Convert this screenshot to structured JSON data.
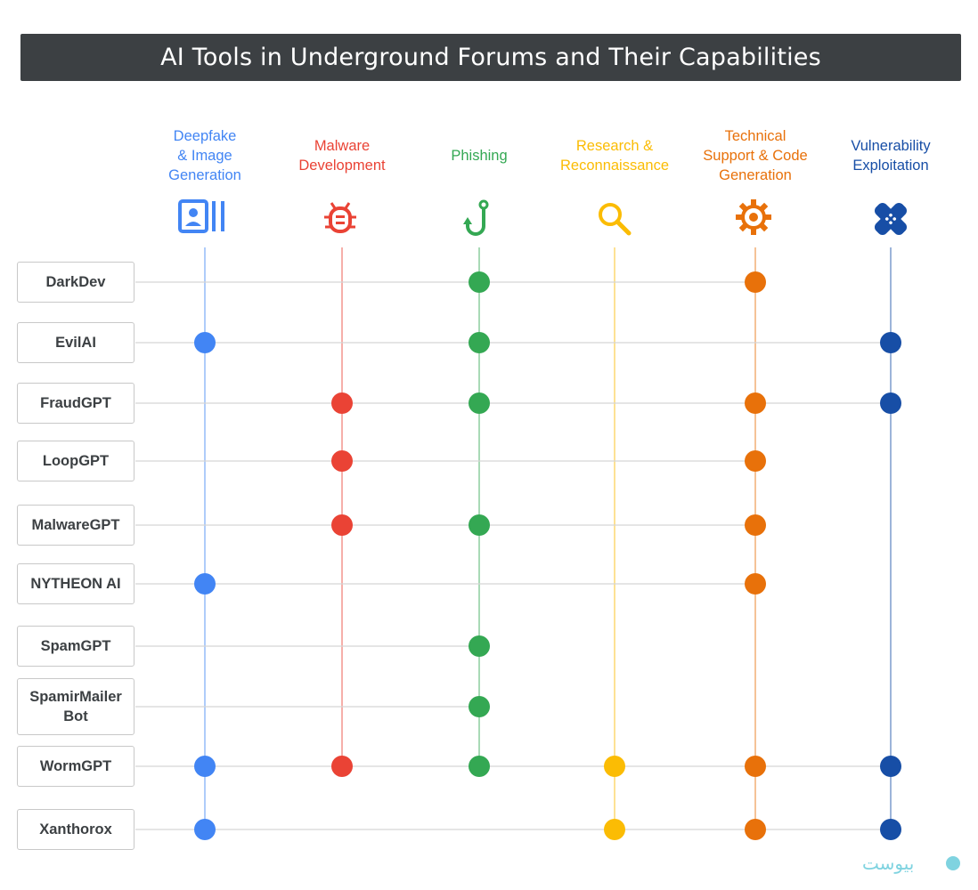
{
  "title": "AI Tools in Underground Forums and Their Capabilities",
  "categories": [
    {
      "label": "Deepfake\n& Image\nGeneration",
      "color": "#4285f4",
      "icon": "image-gallery-icon"
    },
    {
      "label": "Malware\nDevelopment",
      "color": "#ea4335",
      "icon": "bug-icon"
    },
    {
      "label": "Phishing",
      "color": "#34a853",
      "icon": "fishing-hook-icon"
    },
    {
      "label": "Research &\nReconnaissance",
      "color": "#fbbc04",
      "icon": "magnifier-icon"
    },
    {
      "label": "Technical\nSupport & Code\nGeneration",
      "color": "#e8710a",
      "icon": "gear-icon"
    },
    {
      "label": "Vulnerability\nExploitation",
      "color": "#174ea6",
      "icon": "bandage-icon"
    }
  ],
  "tools": [
    {
      "name": "DarkDev",
      "capabilities": [
        false,
        false,
        true,
        false,
        true,
        false
      ]
    },
    {
      "name": "EvilAI",
      "capabilities": [
        true,
        false,
        true,
        false,
        false,
        true
      ]
    },
    {
      "name": "FraudGPT",
      "capabilities": [
        false,
        true,
        true,
        false,
        true,
        true
      ]
    },
    {
      "name": "LoopGPT",
      "capabilities": [
        false,
        true,
        false,
        false,
        true,
        false
      ]
    },
    {
      "name": "MalwareGPT",
      "capabilities": [
        false,
        true,
        true,
        false,
        true,
        false
      ]
    },
    {
      "name": "NYTHEON AI",
      "capabilities": [
        true,
        false,
        false,
        false,
        true,
        false
      ]
    },
    {
      "name": "SpamGPT",
      "capabilities": [
        false,
        false,
        true,
        false,
        false,
        false
      ]
    },
    {
      "name": "SpamirMailer\nBot",
      "capabilities": [
        false,
        false,
        true,
        false,
        false,
        false
      ]
    },
    {
      "name": "WormGPT",
      "capabilities": [
        true,
        true,
        true,
        true,
        true,
        true
      ]
    },
    {
      "name": "Xanthorox",
      "capabilities": [
        true,
        false,
        false,
        true,
        true,
        true
      ]
    }
  ],
  "watermark": "بیوست"
}
